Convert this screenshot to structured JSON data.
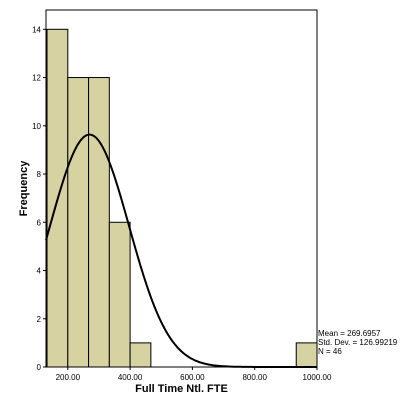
{
  "chart_data": {
    "type": "bar",
    "subtype": "histogram",
    "xlabel": "Full Time Ntl. FTE",
    "ylabel": "Frequency",
    "xlim": [
      130,
      1000
    ],
    "ylim": [
      0,
      14.8
    ],
    "x_ticks": [
      {
        "value": 200,
        "label": "200.00"
      },
      {
        "value": 400,
        "label": "400.00"
      },
      {
        "value": 600,
        "label": "600.00"
      },
      {
        "value": 800,
        "label": "800.00"
      },
      {
        "value": 1000,
        "label": "1000.00"
      }
    ],
    "y_ticks": [
      0,
      2,
      4,
      6,
      8,
      10,
      12,
      14
    ],
    "bin_width": 66.67,
    "bins": [
      {
        "start": 133.33,
        "end": 200.0,
        "count": 14
      },
      {
        "start": 200.0,
        "end": 266.67,
        "count": 12
      },
      {
        "start": 266.67,
        "end": 333.33,
        "count": 12
      },
      {
        "start": 333.33,
        "end": 400.0,
        "count": 6
      },
      {
        "start": 400.0,
        "end": 466.67,
        "count": 1
      },
      {
        "start": 933.33,
        "end": 1000.0,
        "count": 1
      }
    ],
    "normal_curve": {
      "mean": 269.6957,
      "std_dev": 126.99219,
      "n": 46
    },
    "stats_labels": [
      "Mean = 269.6957",
      "Std. Dev. = 126.99219",
      "N = 46"
    ],
    "bar_color": "#d6d2a1",
    "bar_edge_color": "#000000",
    "curve_color": "#000000",
    "grid": false
  }
}
